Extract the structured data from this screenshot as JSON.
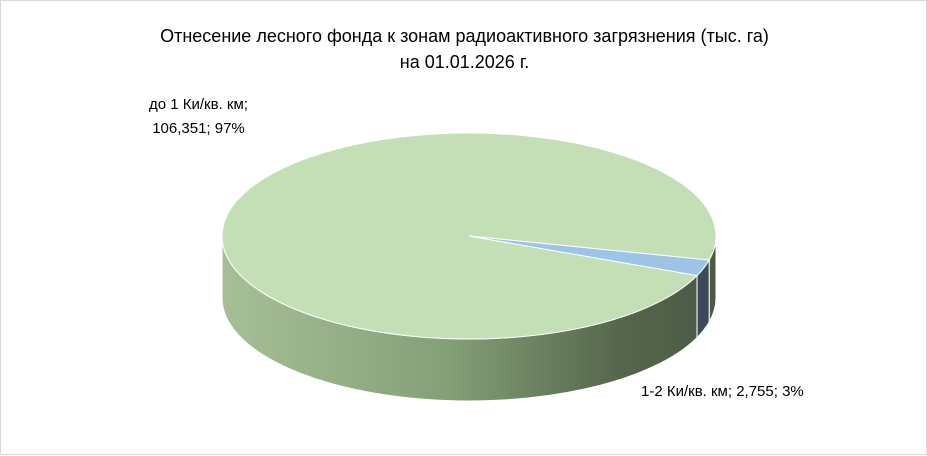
{
  "chart_data": {
    "type": "pie",
    "title_line1": "Отнесение лесного фонда к зонам радиоактивного загрязнения (тыс. га)",
    "title_line2": "на 01.01.2026 г.",
    "slices": [
      {
        "category": "до 1 Ки/кв. км;",
        "value": 106.351,
        "value_text": "106,351; 97%",
        "percent": 97,
        "color": "#c4deb5",
        "side_color": "#8aa37e"
      },
      {
        "category": "1-2 Ки/кв. км;",
        "value": 2.755,
        "value_text": "2,755; 3%",
        "percent": 3,
        "color": "#9dc3e6",
        "side_color": "#3d4a5c"
      }
    ],
    "minor_label": "1-2 Ки/кв. км; 2,755; 3%",
    "legend": "none",
    "style": "3d-pie"
  }
}
